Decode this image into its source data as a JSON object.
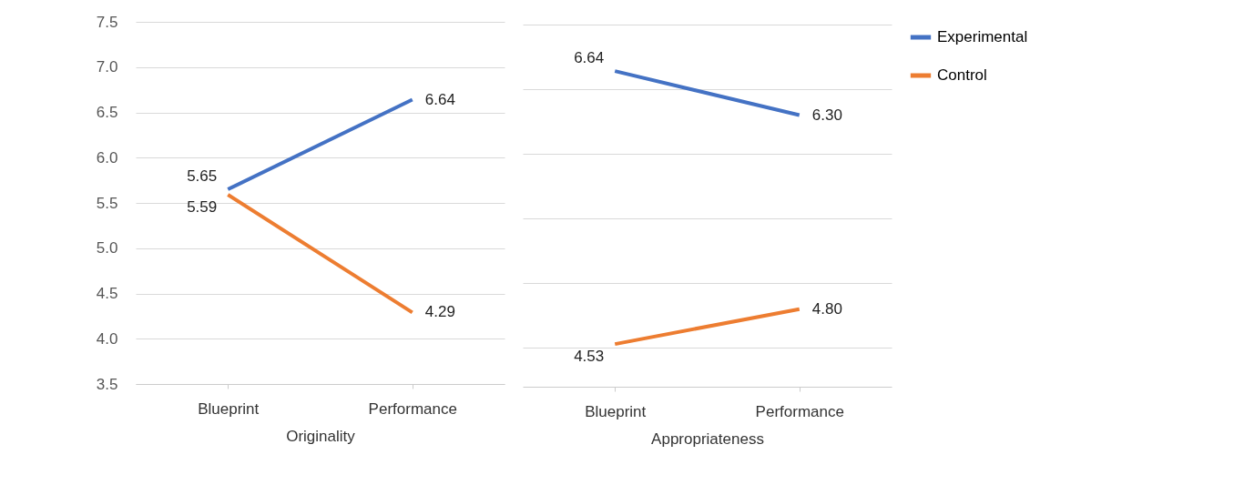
{
  "chart_data": [
    {
      "type": "line",
      "xlabel": "Originality",
      "categories": [
        "Blueprint",
        "Performance"
      ],
      "series": [
        {
          "color": "#4472c4",
          "values": [
            5.65,
            6.64
          ],
          "value_labels": [
            "5.65",
            "6.64"
          ]
        },
        {
          "color": "#ed7d31",
          "values": [
            5.59,
            4.29
          ],
          "value_labels": [
            "5.59",
            "4.29"
          ]
        }
      ],
      "ylim": [
        3.5,
        7.5
      ],
      "yticks": [
        3.5,
        {
          "value": 4,
          "label": "4.0"
        },
        4.5,
        {
          "value": 5,
          "label": "5.0"
        },
        5.5,
        {
          "value": 6,
          "label": "6.0"
        },
        6.5,
        {
          "value": 7,
          "label": "7.0"
        },
        7.5
      ],
      "grid": "y",
      "marker": "none",
      "line_style": "solid"
    },
    {
      "type": "line",
      "xlabel": "Appropriateness",
      "categories": [
        "Blueprint",
        "Performance"
      ],
      "series": [
        {
          "name": "Experimental",
          "color": "#4472c4",
          "values": [
            6.64,
            6.3
          ],
          "value_labels": [
            "6.64",
            "6.30"
          ]
        },
        {
          "name": "Control",
          "color": "#ed7d31",
          "values": [
            4.53,
            4.8
          ],
          "value_labels": [
            "4.53",
            "4.80"
          ]
        }
      ],
      "tick_labels": "x",
      "grid": "y",
      "legend": "right",
      "marker": "none",
      "line_style": "solid"
    }
  ]
}
